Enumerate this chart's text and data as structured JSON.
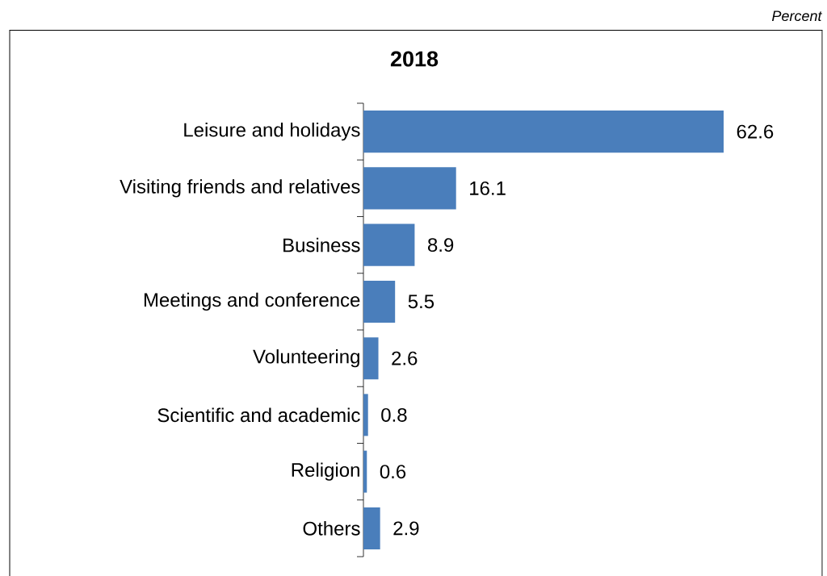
{
  "chart_data": {
    "type": "bar",
    "orientation": "horizontal",
    "title": "2018",
    "categories": [
      "Leisure and holidays",
      "Visiting friends and relatives",
      "Business",
      "Meetings and conference",
      "Volunteering",
      "Scientific and academic",
      "Religion",
      "Others"
    ],
    "values": [
      62.6,
      16.1,
      8.9,
      5.5,
      2.6,
      0.8,
      0.6,
      2.9
    ],
    "color": "#4a7ebb",
    "data_labels": true,
    "tick_labels": "y",
    "annotations": [
      "Percent"
    ]
  }
}
